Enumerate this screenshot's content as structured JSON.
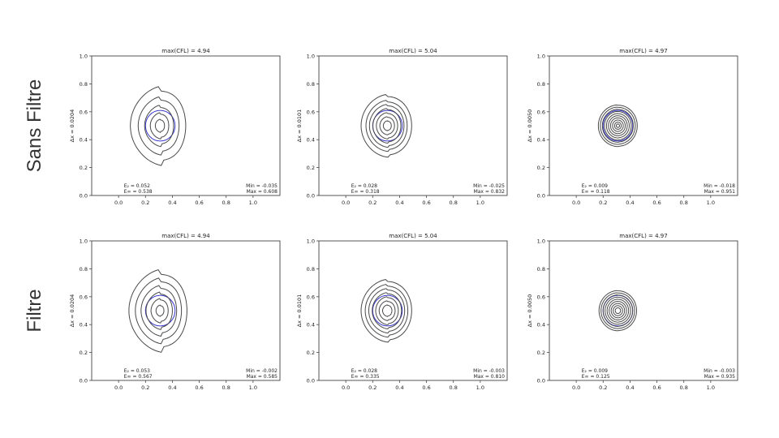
{
  "row_labels": [
    "Sans Filtre",
    "Filtre"
  ],
  "colors": {
    "contour": "#4a4a4a",
    "reference": "#3b3bcc",
    "frame": "#555555"
  },
  "chart_data": [
    {
      "type": "contour",
      "title": "max(CFL) = 4.94",
      "ylabel": "Δx = 0.0204",
      "xlim": [
        -0.2,
        1.2
      ],
      "ylim": [
        0,
        1
      ],
      "xticks": [
        "0.0",
        "0.2",
        "0.4",
        "0.6",
        "0.8",
        "1.0"
      ],
      "yticks": [
        "0.0",
        "0.2",
        "0.4",
        "0.6",
        "0.8",
        "1.0"
      ],
      "annot_left": [
        "E₂ = 0.052",
        "E∞ = 0.538"
      ],
      "annot_right": [
        "Min = -0.035",
        "Max = 0.608"
      ],
      "center": [
        0.31,
        0.5
      ],
      "radii": [
        0.21,
        0.155,
        0.11,
        0.07,
        0.035
      ],
      "crescent": 0.55,
      "ref_radius": 0.11
    },
    {
      "type": "contour",
      "title": "max(CFL) = 5.04",
      "ylabel": "Δx = 0.0101",
      "xlim": [
        -0.2,
        1.2
      ],
      "ylim": [
        0,
        1
      ],
      "xticks": [
        "0.0",
        "0.2",
        "0.4",
        "0.6",
        "0.8",
        "1.0"
      ],
      "yticks": [
        "0.0",
        "0.2",
        "0.4",
        "0.6",
        "0.8",
        "1.0"
      ],
      "annot_left": [
        "E₂ = 0.028",
        "E∞ = 0.318"
      ],
      "annot_right": [
        "Min = -0.025",
        "Max = 0.832"
      ],
      "center": [
        0.31,
        0.5
      ],
      "radii": [
        0.19,
        0.155,
        0.13,
        0.105,
        0.08,
        0.055,
        0.03
      ],
      "crescent": 0.3,
      "ref_radius": 0.11
    },
    {
      "type": "contour",
      "title": "max(CFL) = 4.97",
      "ylabel": "Δx = 0.0050",
      "xlim": [
        -0.2,
        1.2
      ],
      "ylim": [
        0,
        1
      ],
      "xticks": [
        "0.0",
        "0.2",
        "0.4",
        "0.6",
        "0.8",
        "1.0"
      ],
      "yticks": [
        "0.0",
        "0.2",
        "0.4",
        "0.6",
        "0.8",
        "1.0"
      ],
      "annot_left": [
        "E₂ = 0.009",
        "E∞ = 0.118"
      ],
      "annot_right": [
        "Min = -0.018",
        "Max = 0.951"
      ],
      "center": [
        0.31,
        0.5
      ],
      "radii": [
        0.145,
        0.13,
        0.115,
        0.1,
        0.085,
        0.07,
        0.055,
        0.04,
        0.025,
        0.012
      ],
      "crescent": 0.05,
      "ref_radius": 0.11
    },
    {
      "type": "contour",
      "title": "max(CFL) = 4.94",
      "ylabel": "Δx = 0.0204",
      "xlim": [
        -0.2,
        1.2
      ],
      "ylim": [
        0,
        1
      ],
      "xticks": [
        "0.0",
        "0.2",
        "0.4",
        "0.6",
        "0.8",
        "1.0"
      ],
      "yticks": [
        "0.0",
        "0.2",
        "0.4",
        "0.6",
        "0.8",
        "1.0"
      ],
      "annot_left": [
        "E₂ = 0.053",
        "E∞ = 0.567"
      ],
      "annot_right": [
        "Min = -0.002",
        "Max = 0.585"
      ],
      "center": [
        0.31,
        0.5
      ],
      "radii": [
        0.22,
        0.175,
        0.135,
        0.1,
        0.065,
        0.03
      ],
      "crescent": 0.55,
      "ref_radius": 0.11
    },
    {
      "type": "contour",
      "title": "max(CFL) = 5.04",
      "ylabel": "Δx = 0.0101",
      "xlim": [
        -0.2,
        1.2
      ],
      "ylim": [
        0,
        1
      ],
      "xticks": [
        "0.0",
        "0.2",
        "0.4",
        "0.6",
        "0.8",
        "1.0"
      ],
      "yticks": [
        "0.0",
        "0.2",
        "0.4",
        "0.6",
        "0.8",
        "1.0"
      ],
      "annot_left": [
        "E₂ = 0.028",
        "E∞ = 0.335"
      ],
      "annot_right": [
        "Min = -0.003",
        "Max = 0.810"
      ],
      "center": [
        0.31,
        0.5
      ],
      "radii": [
        0.19,
        0.16,
        0.135,
        0.11,
        0.085,
        0.06,
        0.035
      ],
      "crescent": 0.3,
      "ref_radius": 0.11
    },
    {
      "type": "contour",
      "title": "max(CFL) = 4.97",
      "ylabel": "Δx = 0.0050",
      "xlim": [
        -0.2,
        1.2
      ],
      "ylim": [
        0,
        1
      ],
      "xticks": [
        "0.0",
        "0.2",
        "0.4",
        "0.6",
        "0.8",
        "1.0"
      ],
      "yticks": [
        "0.0",
        "0.2",
        "0.4",
        "0.6",
        "0.8",
        "1.0"
      ],
      "annot_left": [
        "E₂ = 0.009",
        "E∞ = 0.125"
      ],
      "annot_right": [
        "Min = -0.003",
        "Max = 0.935"
      ],
      "center": [
        0.31,
        0.5
      ],
      "radii": [
        0.14,
        0.125,
        0.11,
        0.095,
        0.08,
        0.065,
        0.05,
        0.035,
        0.02
      ],
      "crescent": 0.05,
      "ref_radius": 0.11
    }
  ]
}
